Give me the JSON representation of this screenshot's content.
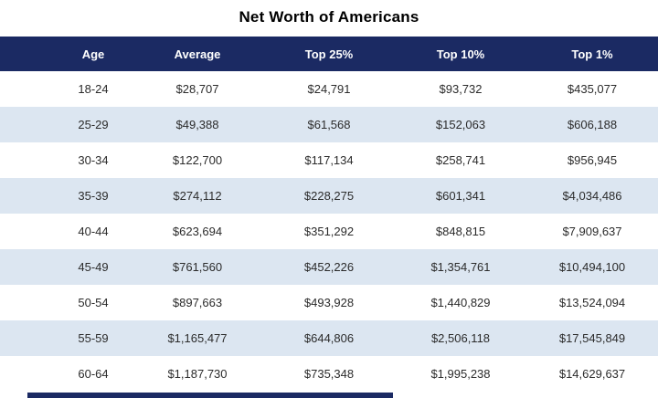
{
  "title": "Net Worth of Americans",
  "colors": {
    "header_bg": "#1b2a63",
    "header_text": "#ffffff",
    "row_alt_bg": "#dce6f1",
    "row_bg": "#ffffff",
    "body_text": "#2b2b2b"
  },
  "chart_data": {
    "type": "table",
    "title": "Net Worth of Americans",
    "columns": [
      "Age",
      "Average",
      "Top 25%",
      "Top 10%",
      "Top 1%"
    ],
    "rows": [
      [
        "18-24",
        "$28,707",
        "$24,791",
        "$93,732",
        "$435,077"
      ],
      [
        "25-29",
        "$49,388",
        "$61,568",
        "$152,063",
        "$606,188"
      ],
      [
        "30-34",
        "$122,700",
        "$117,134",
        "$258,741",
        "$956,945"
      ],
      [
        "35-39",
        "$274,112",
        "$228,275",
        "$601,341",
        "$4,034,486"
      ],
      [
        "40-44",
        "$623,694",
        "$351,292",
        "$848,815",
        "$7,909,637"
      ],
      [
        "45-49",
        "$761,560",
        "$452,226",
        "$1,354,761",
        "$10,494,100"
      ],
      [
        "50-54",
        "$897,663",
        "$493,928",
        "$1,440,829",
        "$13,524,094"
      ],
      [
        "55-59",
        "$1,165,477",
        "$644,806",
        "$2,506,118",
        "$17,545,849"
      ],
      [
        "60-64",
        "$1,187,730",
        "$735,348",
        "$1,995,238",
        "$14,629,637"
      ]
    ],
    "layout": {
      "row_striping": "white / light-blue alternating",
      "header_style": "navy bar, white bold centered text",
      "grid_lines": "none"
    }
  }
}
